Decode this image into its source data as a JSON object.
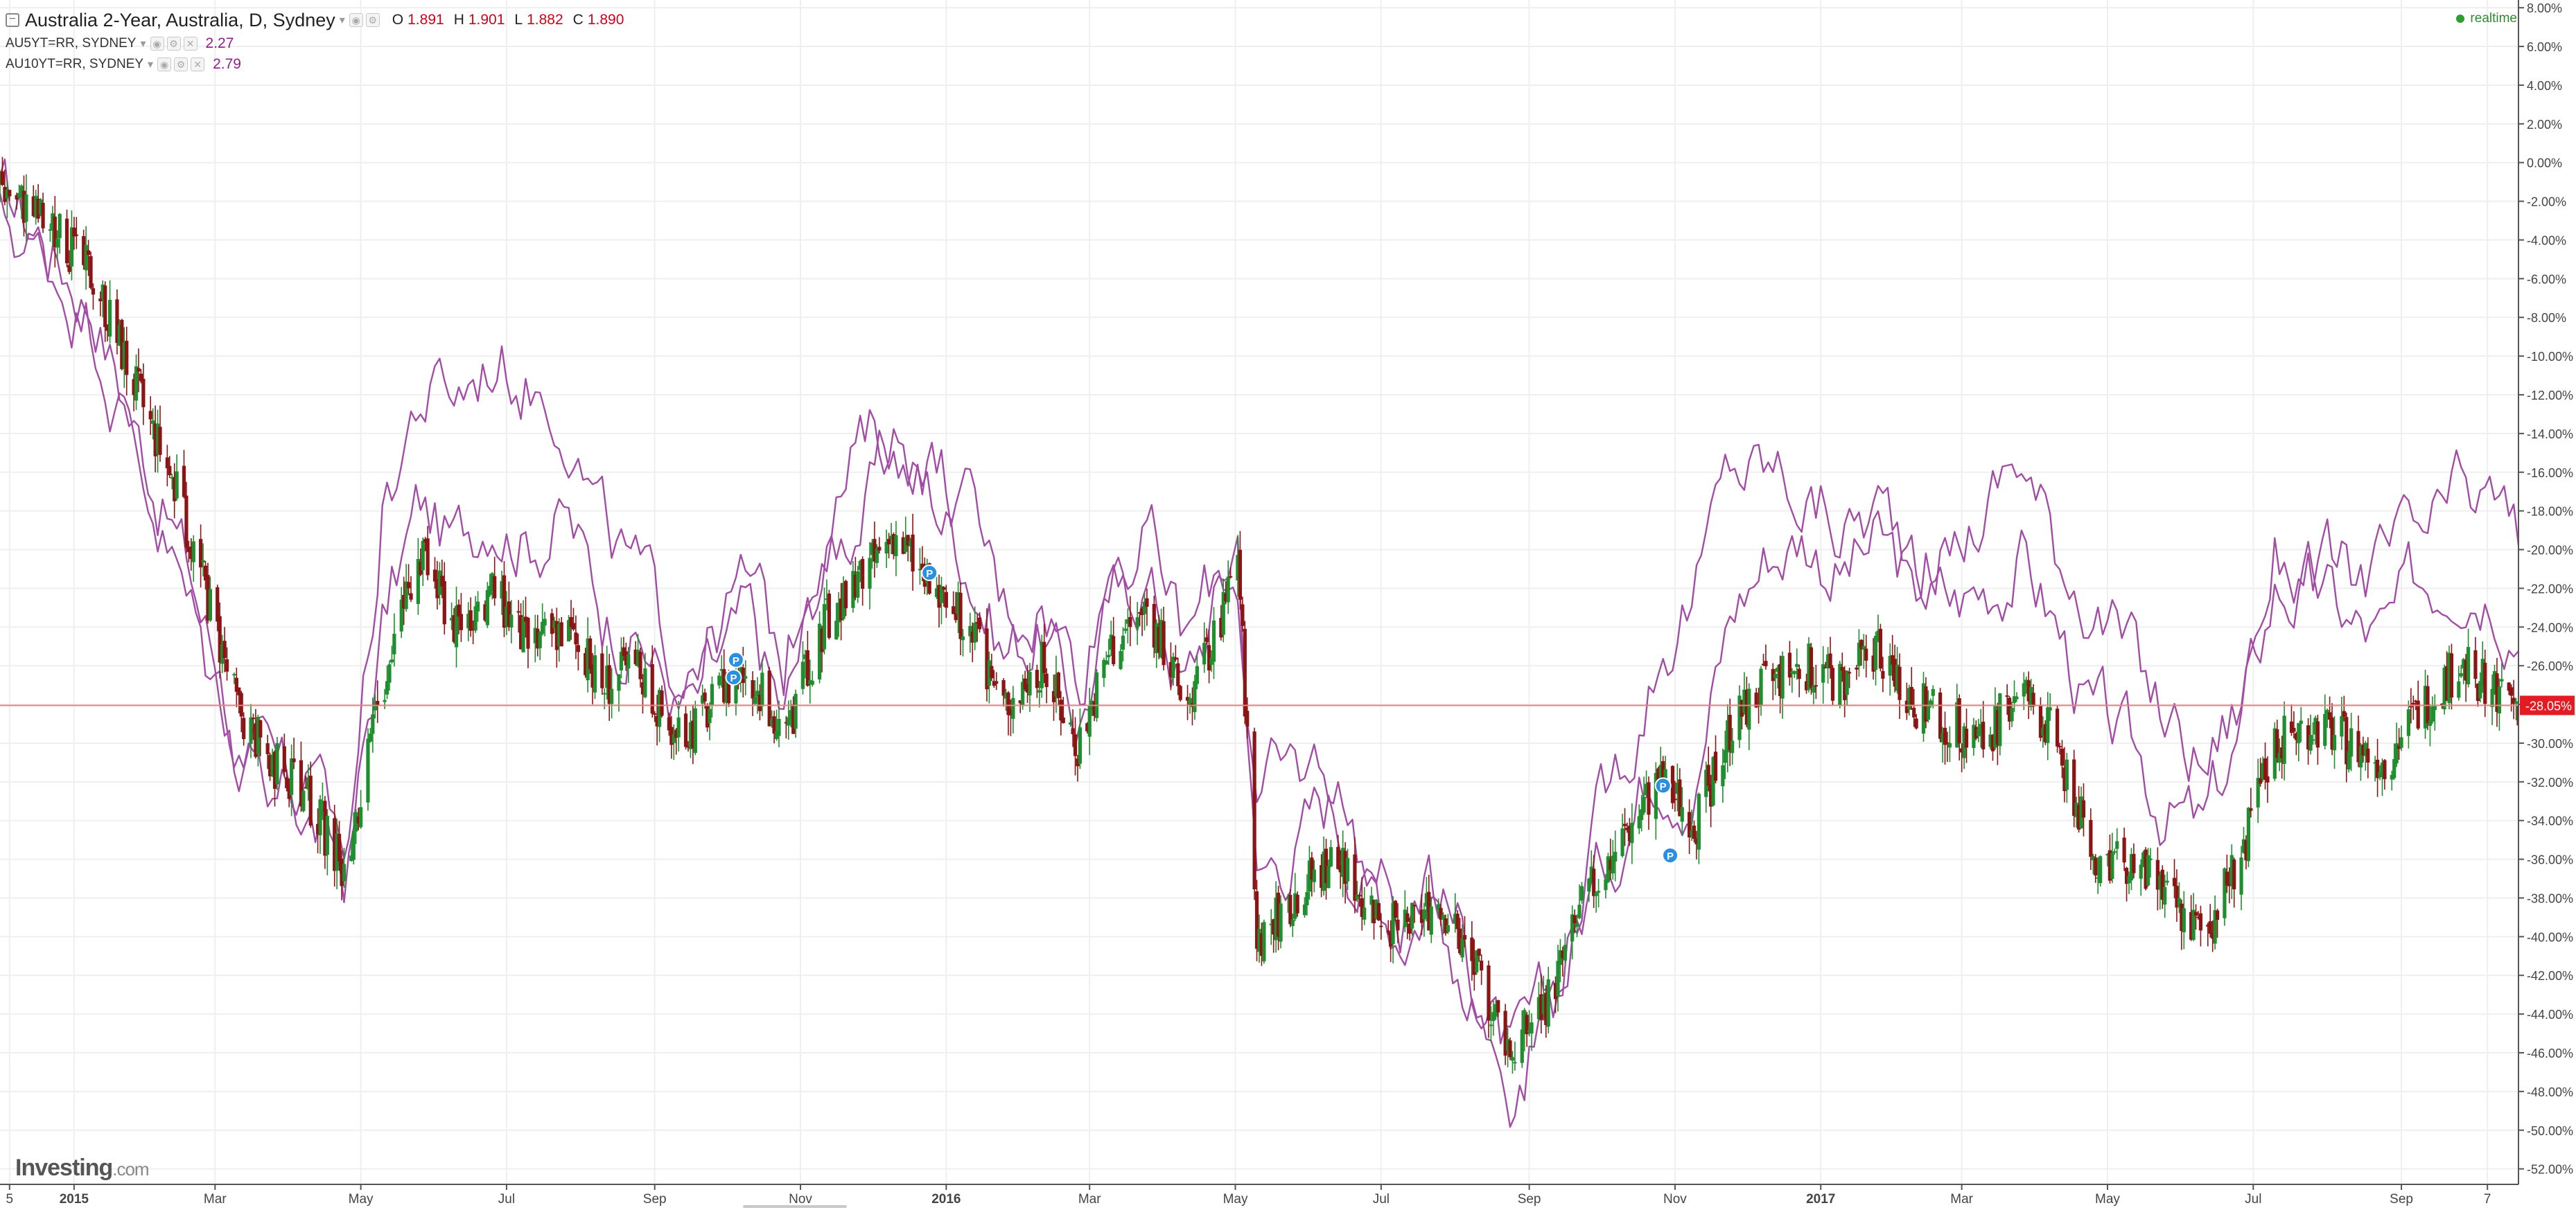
{
  "legend": {
    "main_title": "Australia 2-Year, Australia, D, Sydney",
    "ohlc": [
      {
        "label": "O",
        "value": "1.891"
      },
      {
        "label": "H",
        "value": "1.901"
      },
      {
        "label": "L",
        "value": "1.882"
      },
      {
        "label": "C",
        "value": "1.890"
      }
    ],
    "series": [
      {
        "symbol": "AU5YT=RR, SYDNEY",
        "value": "2.27"
      },
      {
        "symbol": "AU10YT=RR, SYDNEY",
        "value": "2.79"
      }
    ]
  },
  "realtime_label": "realtime",
  "logo": {
    "main": "Investing",
    "suffix": ".com"
  },
  "colors": {
    "up_candle": "#1e8e2e",
    "down_candle": "#8b1414",
    "compare_series": "#a24ca6",
    "current_line": "#f08080",
    "price_tag_bg": "#e31b23",
    "grid": "#efefef"
  },
  "chart_data": {
    "type": "line",
    "description_axis": "percent change scale",
    "y_unit": "%",
    "ylim": [
      -52.8,
      8.4
    ],
    "y_ticks": [
      8,
      6,
      4,
      2,
      0,
      -2,
      -4,
      -6,
      -8,
      -10,
      -12,
      -14,
      -16,
      -18,
      -20,
      -22,
      -24,
      -26,
      -28,
      -30,
      -32,
      -34,
      -36,
      -38,
      -40,
      -42,
      -44,
      -46,
      -48,
      -50,
      -52
    ],
    "y_tick_labels": [
      "8.00%",
      "6.00%",
      "4.00%",
      "2.00%",
      "0.00%",
      "-2.00%",
      "-4.00%",
      "-6.00%",
      "-8.00%",
      "-10.00%",
      "-12.00%",
      "-14.00%",
      "-16.00%",
      "-18.00%",
      "-20.00%",
      "-22.00%",
      "-24.00%",
      "-26.00%",
      "-28.00%",
      "-30.00%",
      "-32.00%",
      "-34.00%",
      "-36.00%",
      "-38.00%",
      "-40.00%",
      "-42.00%",
      "-44.00%",
      "-46.00%",
      "-48.00%",
      "-50.00%",
      "-52.00%"
    ],
    "x_range": [
      "2014-12-01",
      "2017-10-20"
    ],
    "x_ticks": [
      {
        "date": "2014-12-05",
        "label": "5",
        "bold": false
      },
      {
        "date": "2015-01-01",
        "label": "2015",
        "bold": true
      },
      {
        "date": "2015-03-01",
        "label": "Mar",
        "bold": false
      },
      {
        "date": "2015-05-01",
        "label": "May",
        "bold": false
      },
      {
        "date": "2015-07-01",
        "label": "Jul",
        "bold": false
      },
      {
        "date": "2015-09-01",
        "label": "Sep",
        "bold": false
      },
      {
        "date": "2015-11-01",
        "label": "Nov",
        "bold": false
      },
      {
        "date": "2016-01-01",
        "label": "2016",
        "bold": true
      },
      {
        "date": "2016-03-01",
        "label": "Mar",
        "bold": false
      },
      {
        "date": "2016-05-01",
        "label": "May",
        "bold": false
      },
      {
        "date": "2016-07-01",
        "label": "Jul",
        "bold": false
      },
      {
        "date": "2016-09-01",
        "label": "Sep",
        "bold": false
      },
      {
        "date": "2016-11-01",
        "label": "Nov",
        "bold": false
      },
      {
        "date": "2017-01-01",
        "label": "2017",
        "bold": true
      },
      {
        "date": "2017-03-01",
        "label": "Mar",
        "bold": false
      },
      {
        "date": "2017-05-01",
        "label": "May",
        "bold": false
      },
      {
        "date": "2017-07-01",
        "label": "Jul",
        "bold": false
      },
      {
        "date": "2017-09-01",
        "label": "Sep",
        "bold": false
      },
      {
        "date": "2017-10-07",
        "label": "7",
        "bold": false
      }
    ],
    "current_value": -28.05,
    "current_label": "-28.05%",
    "main_series_type": "candlestick",
    "main_series": {
      "name": "Australia 2-Year, Australia, D, Sydney",
      "x": [
        "2014-12-01",
        "2014-12-20",
        "2015-01-10",
        "2015-01-25",
        "2015-02-10",
        "2015-02-25",
        "2015-03-10",
        "2015-03-25",
        "2015-04-10",
        "2015-04-25",
        "2015-05-10",
        "2015-05-25",
        "2015-06-10",
        "2015-06-25",
        "2015-07-10",
        "2015-07-25",
        "2015-08-10",
        "2015-08-25",
        "2015-09-10",
        "2015-09-25",
        "2015-10-10",
        "2015-10-25",
        "2015-11-10",
        "2015-11-25",
        "2015-12-10",
        "2015-12-25",
        "2016-01-10",
        "2016-01-25",
        "2016-02-10",
        "2016-02-25",
        "2016-03-10",
        "2016-03-25",
        "2016-04-10",
        "2016-04-25",
        "2016-05-02",
        "2016-05-10",
        "2016-05-25",
        "2016-06-10",
        "2016-06-25",
        "2016-07-10",
        "2016-07-25",
        "2016-08-10",
        "2016-08-25",
        "2016-09-10",
        "2016-09-25",
        "2016-10-10",
        "2016-10-25",
        "2016-11-10",
        "2016-11-25",
        "2016-12-10",
        "2016-12-25",
        "2017-01-10",
        "2017-01-25",
        "2017-02-10",
        "2017-02-25",
        "2017-03-10",
        "2017-03-25",
        "2017-04-10",
        "2017-04-25",
        "2017-05-10",
        "2017-05-25",
        "2017-06-10",
        "2017-06-25",
        "2017-07-10",
        "2017-07-25",
        "2017-08-10",
        "2017-08-25",
        "2017-09-10",
        "2017-09-25",
        "2017-10-10",
        "2017-10-20"
      ],
      "values": [
        -1,
        -3,
        -6,
        -11,
        -16,
        -22,
        -28,
        -31,
        -33,
        -37,
        -27,
        -20,
        -24,
        -22,
        -25,
        -24,
        -27,
        -26,
        -30,
        -28,
        -26,
        -30,
        -24,
        -22,
        -19,
        -22,
        -24,
        -28,
        -26,
        -30,
        -25,
        -23,
        -28,
        -24,
        -20,
        -40,
        -38,
        -36,
        -38,
        -40,
        -38,
        -42,
        -46,
        -43,
        -38,
        -35,
        -32,
        -34,
        -29,
        -27,
        -26,
        -27,
        -25,
        -28,
        -29,
        -30,
        -27,
        -30,
        -36,
        -36,
        -38,
        -40,
        -36,
        -30,
        -29,
        -30,
        -31,
        -28,
        -26,
        -27,
        -28
      ]
    },
    "series": [
      {
        "symbol": "AU5YT=RR, SYDNEY",
        "x": [
          "2014-12-01",
          "2014-12-20",
          "2015-01-10",
          "2015-01-25",
          "2015-02-10",
          "2015-02-25",
          "2015-03-10",
          "2015-03-25",
          "2015-04-10",
          "2015-04-25",
          "2015-05-10",
          "2015-05-25",
          "2015-06-10",
          "2015-06-25",
          "2015-07-10",
          "2015-07-25",
          "2015-08-10",
          "2015-08-25",
          "2015-09-10",
          "2015-09-25",
          "2015-10-10",
          "2015-10-25",
          "2015-11-10",
          "2015-11-25",
          "2015-12-10",
          "2015-12-25",
          "2016-01-10",
          "2016-01-25",
          "2016-02-10",
          "2016-02-25",
          "2016-03-10",
          "2016-03-25",
          "2016-04-10",
          "2016-04-25",
          "2016-05-02",
          "2016-05-10",
          "2016-05-25",
          "2016-06-10",
          "2016-06-25",
          "2016-07-10",
          "2016-07-25",
          "2016-08-10",
          "2016-08-25",
          "2016-09-10",
          "2016-09-25",
          "2016-10-10",
          "2016-10-25",
          "2016-11-10",
          "2016-11-25",
          "2016-12-10",
          "2016-12-25",
          "2017-01-10",
          "2017-01-25",
          "2017-02-10",
          "2017-02-25",
          "2017-03-10",
          "2017-03-25",
          "2017-04-10",
          "2017-04-25",
          "2017-05-10",
          "2017-05-25",
          "2017-06-10",
          "2017-06-25",
          "2017-07-10",
          "2017-07-25",
          "2017-08-10",
          "2017-08-25",
          "2017-09-10",
          "2017-09-25",
          "2017-10-10",
          "2017-10-20"
        ],
        "values": [
          -2,
          -4,
          -7,
          -13,
          -18,
          -24,
          -30,
          -32,
          -34,
          -37,
          -24,
          -18,
          -20,
          -17,
          -19,
          -18,
          -23,
          -24,
          -28,
          -27,
          -24,
          -29,
          -21,
          -18,
          -15,
          -17,
          -20,
          -25,
          -24,
          -29,
          -23,
          -21,
          -27,
          -22,
          -19,
          -37,
          -35,
          -33,
          -37,
          -39,
          -37,
          -42,
          -47,
          -44,
          -38,
          -34,
          -30,
          -31,
          -23,
          -20,
          -19,
          -21,
          -20,
          -22,
          -23,
          -22,
          -20,
          -24,
          -29,
          -31,
          -33,
          -35,
          -30,
          -22,
          -22,
          -24,
          -25,
          -22,
          -20,
          -21,
          -23
        ]
      },
      {
        "symbol": "AU10YT=RR, SYDNEY",
        "x": [
          "2014-12-01",
          "2014-12-20",
          "2015-01-10",
          "2015-01-25",
          "2015-02-10",
          "2015-02-25",
          "2015-03-10",
          "2015-03-25",
          "2015-04-10",
          "2015-04-25",
          "2015-05-10",
          "2015-05-25",
          "2015-06-10",
          "2015-06-25",
          "2015-07-10",
          "2015-07-25",
          "2015-08-10",
          "2015-08-25",
          "2015-09-10",
          "2015-09-25",
          "2015-10-10",
          "2015-10-25",
          "2015-11-10",
          "2015-11-25",
          "2015-12-10",
          "2015-12-25",
          "2016-01-10",
          "2016-01-25",
          "2016-02-10",
          "2016-02-25",
          "2016-03-10",
          "2016-03-25",
          "2016-04-10",
          "2016-04-25",
          "2016-05-02",
          "2016-05-10",
          "2016-05-25",
          "2016-06-10",
          "2016-06-25",
          "2016-07-10",
          "2016-07-25",
          "2016-08-10",
          "2016-08-25",
          "2016-09-10",
          "2016-09-25",
          "2016-10-10",
          "2016-10-25",
          "2016-11-10",
          "2016-11-25",
          "2016-12-10",
          "2016-12-25",
          "2017-01-10",
          "2017-01-25",
          "2017-02-10",
          "2017-02-25",
          "2017-03-10",
          "2017-03-25",
          "2017-04-10",
          "2017-04-25",
          "2017-05-10",
          "2017-05-25",
          "2017-06-10",
          "2017-06-25",
          "2017-07-10",
          "2017-07-25",
          "2017-08-10",
          "2017-08-25",
          "2017-09-10",
          "2017-09-25",
          "2017-10-10",
          "2017-10-20"
        ],
        "values": [
          -3,
          -5,
          -8,
          -14,
          -20,
          -26,
          -29,
          -31,
          -33,
          -36,
          -18,
          -12,
          -12,
          -10,
          -11,
          -12,
          -19,
          -22,
          -26,
          -24,
          -22,
          -26,
          -18,
          -15,
          -14,
          -15,
          -18,
          -23,
          -22,
          -26,
          -20,
          -19,
          -25,
          -21,
          -21,
          -33,
          -32,
          -31,
          -36,
          -39,
          -38,
          -43,
          -47,
          -43,
          -36,
          -31,
          -25,
          -22,
          -16,
          -16,
          -17,
          -19,
          -18,
          -20,
          -20,
          -18,
          -15,
          -20,
          -22,
          -26,
          -29,
          -31,
          -28,
          -20,
          -21,
          -22,
          -21,
          -20,
          -18,
          -18,
          -20
        ]
      }
    ],
    "event_markers": [
      {
        "date": "2015-10-05",
        "value": -25.7,
        "label": "P"
      },
      {
        "date": "2015-10-04",
        "value": -26.6,
        "label": "P"
      },
      {
        "date": "2015-12-25",
        "value": -21.2,
        "label": "P"
      },
      {
        "date": "2016-10-27",
        "value": -32.2,
        "label": "P"
      },
      {
        "date": "2016-10-30",
        "value": -35.8,
        "label": "P"
      }
    ],
    "grid": true
  }
}
